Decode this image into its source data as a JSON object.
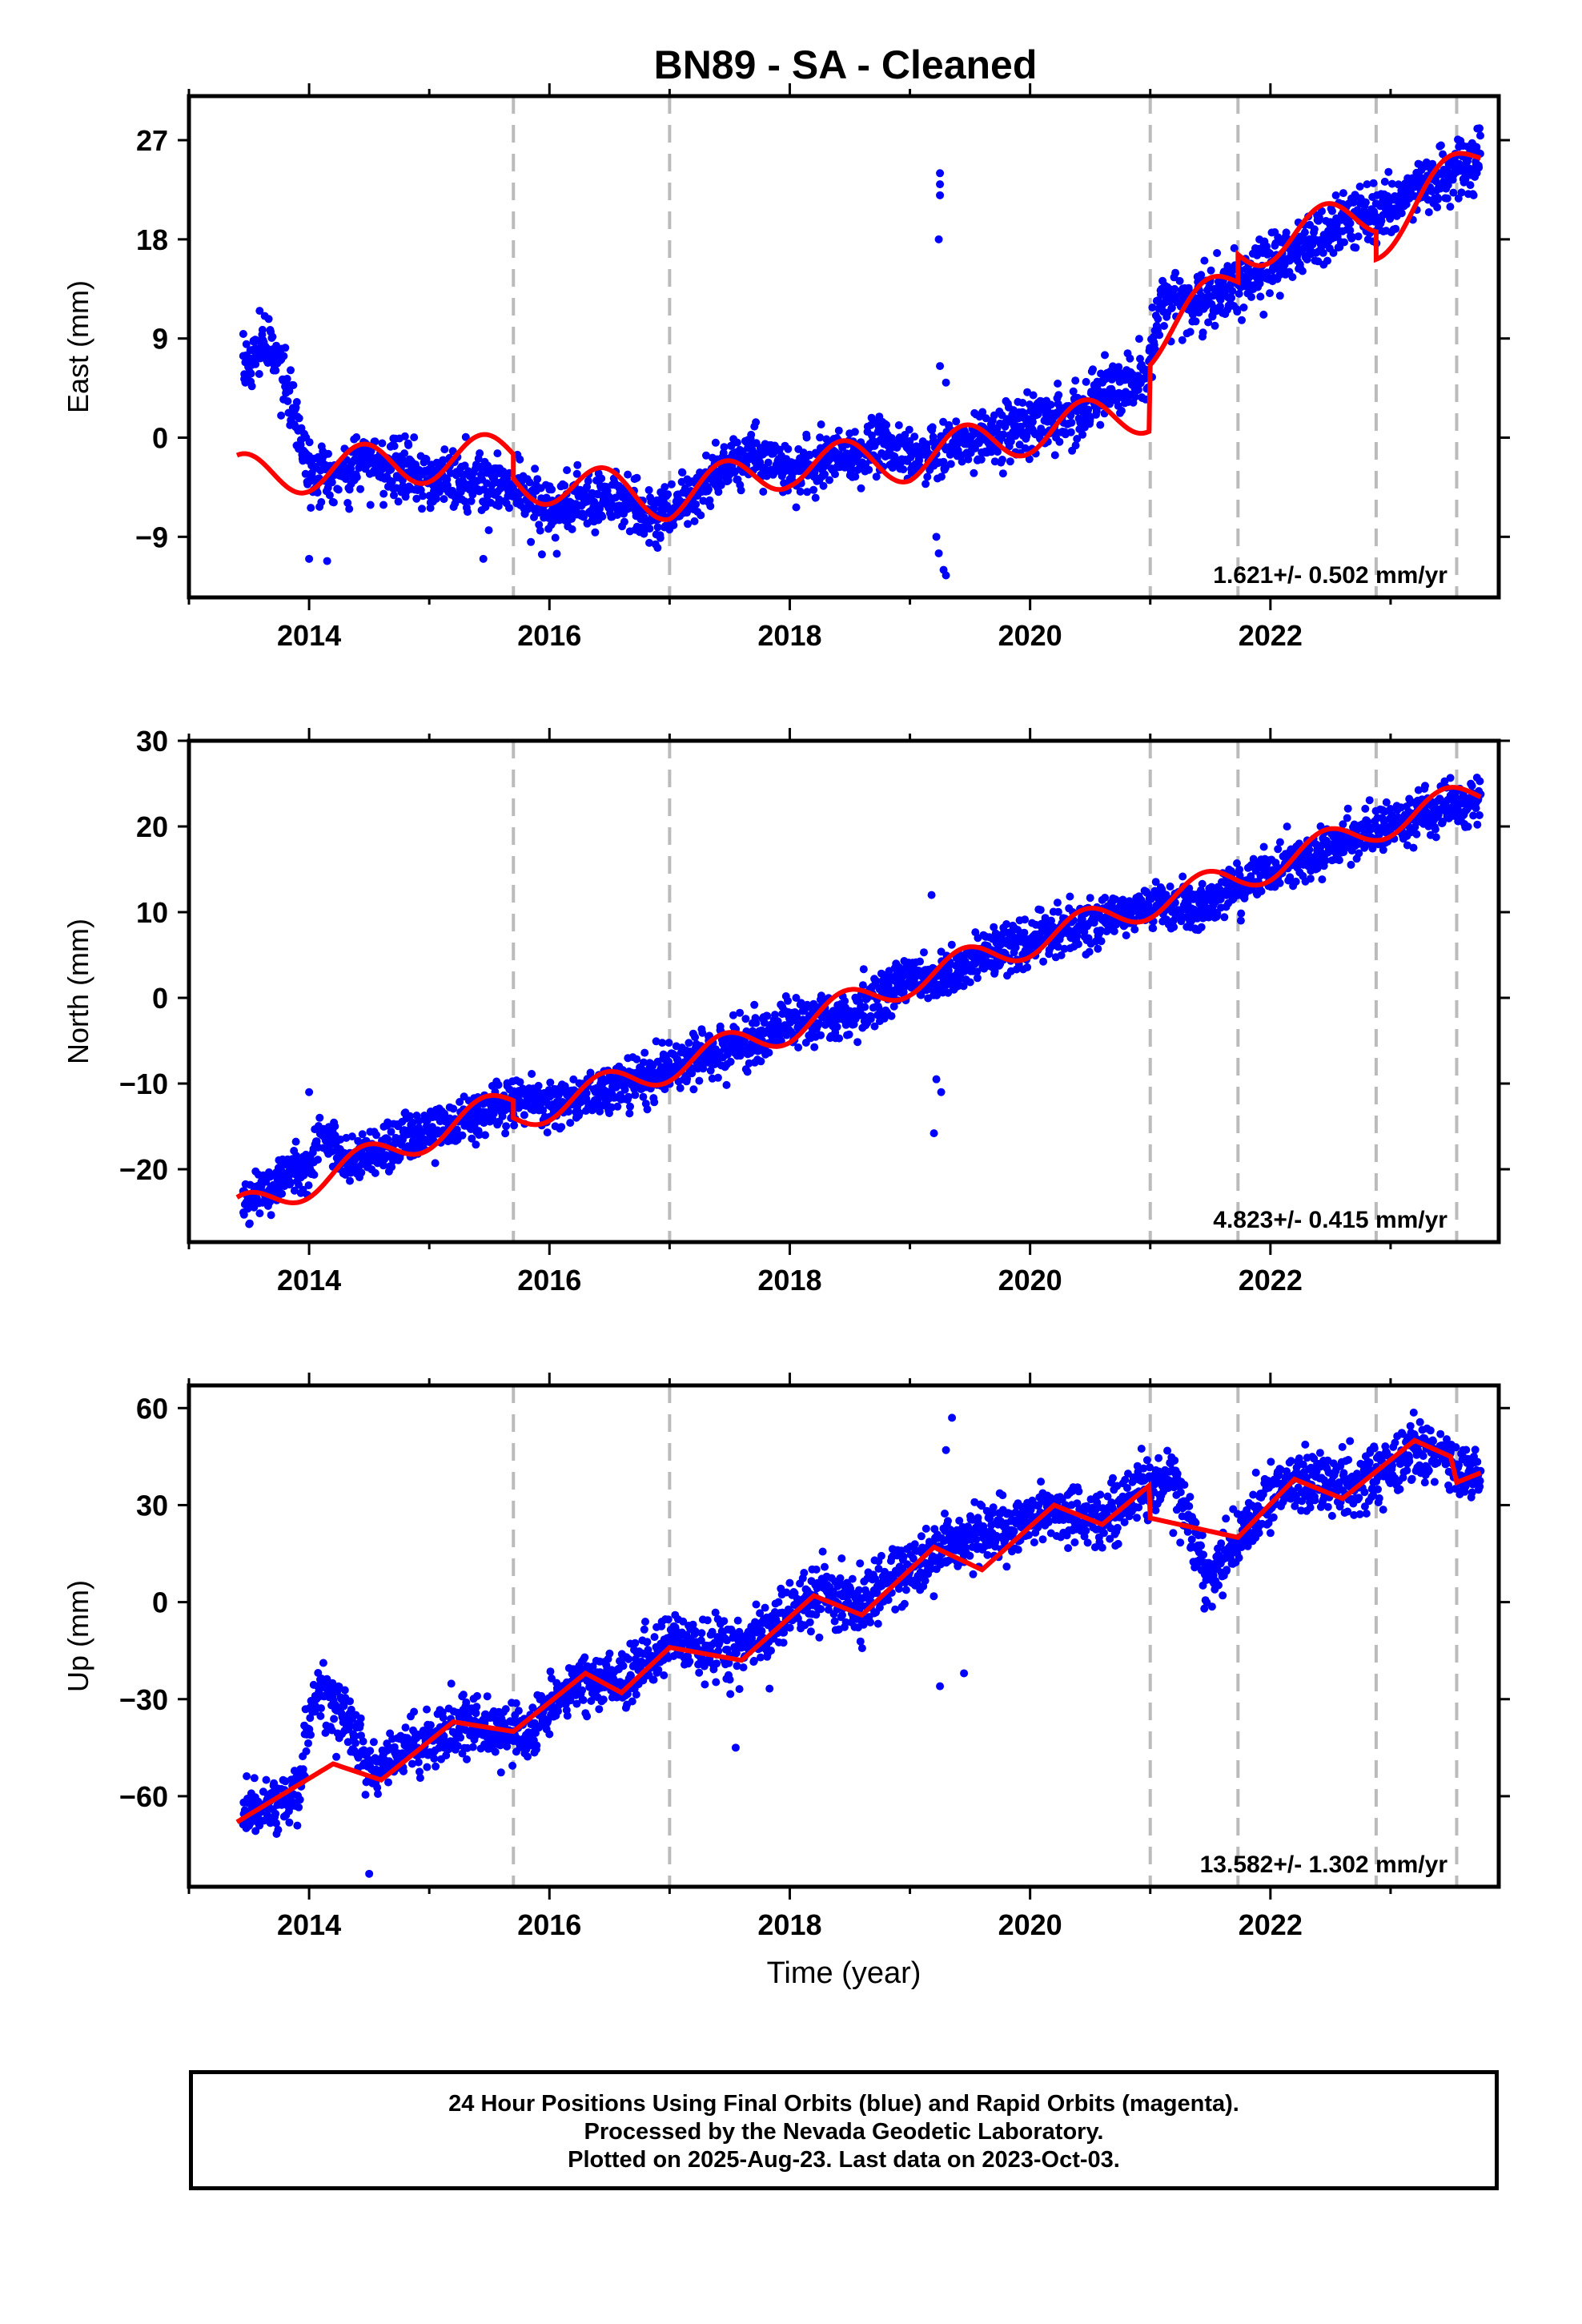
{
  "title": "BN89  - SA - Cleaned",
  "chart_data": [
    {
      "type": "scatter",
      "name": "East",
      "ylabel": "East (mm)",
      "xlabel": "",
      "xlim": [
        2013.0,
        2023.9
      ],
      "ylim": [
        -14.5,
        31
      ],
      "yticks": [
        -9,
        0,
        9,
        18,
        27
      ],
      "xticks": [
        2014,
        2016,
        2018,
        2020,
        2022
      ],
      "breaks": [
        2015.7,
        2017.0,
        2021.0,
        2021.73,
        2022.88,
        2023.55
      ],
      "rate_label": "1.621+/- 0.502 mm/yr",
      "observations_color": "#0000ff",
      "model_color": "#ff0000",
      "trend_points": [
        [
          2013.45,
          6.0
        ],
        [
          2013.6,
          8.5
        ],
        [
          2013.75,
          7.0
        ],
        [
          2013.9,
          1.0
        ],
        [
          2014.05,
          -4.0
        ],
        [
          2014.3,
          -2.5
        ],
        [
          2014.6,
          -2.0
        ],
        [
          2015.0,
          -4.0
        ],
        [
          2015.5,
          -4.0
        ],
        [
          2015.7,
          -4.5
        ],
        [
          2016.0,
          -6.5
        ],
        [
          2016.5,
          -5.5
        ],
        [
          2016.9,
          -7.0
        ],
        [
          2017.3,
          -4.0
        ],
        [
          2017.7,
          -1.5
        ],
        [
          2018.0,
          -3.0
        ],
        [
          2018.5,
          -1.5
        ],
        [
          2018.8,
          -0.5
        ],
        [
          2019.1,
          -2.0
        ],
        [
          2019.5,
          -0.5
        ],
        [
          2019.9,
          1.0
        ],
        [
          2020.3,
          2.0
        ],
        [
          2020.7,
          4.5
        ],
        [
          2020.98,
          6.0
        ],
        [
          2021.1,
          12.5
        ],
        [
          2021.5,
          12.5
        ],
        [
          2021.9,
          15.0
        ],
        [
          2022.3,
          17.5
        ],
        [
          2022.7,
          20.0
        ],
        [
          2023.0,
          21.0
        ],
        [
          2023.4,
          23.5
        ],
        [
          2023.75,
          25.5
        ]
      ],
      "outliers": [
        [
          2019.25,
          24.0
        ],
        [
          2019.25,
          23.0
        ],
        [
          2019.25,
          22.0
        ],
        [
          2019.24,
          18.0
        ],
        [
          2019.22,
          -9.0
        ],
        [
          2019.24,
          -10.5
        ],
        [
          2019.28,
          -12.0
        ],
        [
          2019.3,
          -12.5
        ],
        [
          2014.0,
          -11.0
        ],
        [
          2014.15,
          -11.2
        ],
        [
          2015.45,
          -11.0
        ],
        [
          2016.9,
          -10.0
        ],
        [
          2019.25,
          6.5
        ],
        [
          2019.3,
          5.0
        ]
      ],
      "model": {
        "rate": 1.621,
        "ref_year": 2018.5,
        "anchor": [
          [
            2013.4,
            -3.5
          ],
          [
            2015.7,
            -1.5
          ],
          [
            2015.7,
            -3.7
          ],
          [
            2017.0,
            -5.5
          ],
          [
            2018.0,
            -2.5
          ],
          [
            2019.0,
            -2.0
          ],
          [
            2020.0,
            0.5
          ],
          [
            2020.99,
            2.5
          ],
          [
            2021.0,
            8.5
          ],
          [
            2021.73,
            14.5
          ],
          [
            2021.73,
            17.0
          ],
          [
            2022.88,
            20.5
          ],
          [
            2022.88,
            18.0
          ],
          [
            2023.75,
            26.0
          ]
        ],
        "seasonal": 2.0
      }
    },
    {
      "type": "scatter",
      "name": "North",
      "ylabel": "North (mm)",
      "xlabel": "",
      "xlim": [
        2013.0,
        2023.9
      ],
      "ylim": [
        -28.5,
        30
      ],
      "yticks": [
        -20,
        -10,
        0,
        10,
        20,
        30
      ],
      "xticks": [
        2014,
        2016,
        2018,
        2020,
        2022
      ],
      "breaks": [
        2015.7,
        2017.0,
        2021.0,
        2021.73,
        2022.88,
        2023.55
      ],
      "rate_label": "4.823+/- 0.415 mm/yr",
      "observations_color": "#0000ff",
      "model_color": "#ff0000",
      "trend_points": [
        [
          2013.45,
          -24.0
        ],
        [
          2014.0,
          -20.0
        ],
        [
          2014.1,
          -15.0
        ],
        [
          2014.3,
          -19.5
        ],
        [
          2014.8,
          -17.0
        ],
        [
          2015.5,
          -13.0
        ],
        [
          2015.7,
          -12.0
        ],
        [
          2016.0,
          -12.5
        ],
        [
          2016.5,
          -11.0
        ],
        [
          2017.0,
          -8.0
        ],
        [
          2017.5,
          -6.0
        ],
        [
          2018.0,
          -3.0
        ],
        [
          2018.5,
          -2.0
        ],
        [
          2019.0,
          2.0
        ],
        [
          2019.25,
          2.0
        ],
        [
          2019.6,
          5.0
        ],
        [
          2020.0,
          7.0
        ],
        [
          2020.5,
          8.5
        ],
        [
          2021.0,
          11.0
        ],
        [
          2021.4,
          10.0
        ],
        [
          2021.9,
          14.5
        ],
        [
          2022.3,
          16.5
        ],
        [
          2022.8,
          19.0
        ],
        [
          2023.2,
          21.0
        ],
        [
          2023.75,
          23.0
        ]
      ],
      "outliers": [
        [
          2019.22,
          -9.5
        ],
        [
          2019.26,
          -11.0
        ],
        [
          2019.2,
          -15.8
        ],
        [
          2019.18,
          12.0
        ],
        [
          2014.0,
          -11.0
        ]
      ],
      "model": {
        "rate": 4.823,
        "ref_year": 2018.5,
        "anchor": [
          [
            2013.4,
            -25.0
          ],
          [
            2015.7,
            -12.0
          ],
          [
            2015.7,
            -14.0
          ],
          [
            2017.0,
            -8.0
          ],
          [
            2018.0,
            -3.5
          ],
          [
            2019.0,
            2.0
          ],
          [
            2020.0,
            6.5
          ],
          [
            2021.0,
            11.0
          ],
          [
            2021.73,
            14.0
          ],
          [
            2022.88,
            20.0
          ],
          [
            2023.75,
            24.0
          ]
        ],
        "seasonal": 1.8
      }
    },
    {
      "type": "scatter",
      "name": "Up",
      "ylabel": "Up (mm)",
      "xlabel": "Time (year)",
      "xlim": [
        2013.0,
        2023.9
      ],
      "ylim": [
        -88,
        67
      ],
      "yticks": [
        -60,
        -30,
        0,
        30,
        60
      ],
      "xticks": [
        2014,
        2016,
        2018,
        2020,
        2022
      ],
      "breaks": [
        2015.7,
        2017.0,
        2021.0,
        2021.73,
        2022.88,
        2023.55
      ],
      "rate_label": "13.582+/- 1.302 mm/yr",
      "observations_color": "#0000ff",
      "model_color": "#ff0000",
      "trend_points": [
        [
          2013.45,
          -66.0
        ],
        [
          2013.9,
          -60.0
        ],
        [
          2014.05,
          -27.0
        ],
        [
          2014.3,
          -35.0
        ],
        [
          2014.5,
          -52.0
        ],
        [
          2014.9,
          -45.0
        ],
        [
          2015.3,
          -38.0
        ],
        [
          2015.8,
          -42.0
        ],
        [
          2016.2,
          -25.0
        ],
        [
          2016.6,
          -25.0
        ],
        [
          2017.0,
          -12.0
        ],
        [
          2017.5,
          -15.0
        ],
        [
          2018.0,
          -5.0
        ],
        [
          2018.2,
          2.0
        ],
        [
          2018.6,
          0.0
        ],
        [
          2019.2,
          15.0
        ],
        [
          2019.5,
          20.0
        ],
        [
          2020.2,
          28.0
        ],
        [
          2020.6,
          26.0
        ],
        [
          2021.0,
          36.0
        ],
        [
          2021.2,
          40.0
        ],
        [
          2021.5,
          5.0
        ],
        [
          2021.8,
          25.0
        ],
        [
          2022.2,
          38.0
        ],
        [
          2022.7,
          35.0
        ],
        [
          2023.2,
          48.0
        ],
        [
          2023.75,
          38.0
        ]
      ],
      "outliers": [
        [
          2019.35,
          57.0
        ],
        [
          2019.3,
          47.0
        ],
        [
          2019.25,
          -26.0
        ],
        [
          2019.45,
          -22.0
        ],
        [
          2014.5,
          -84.0
        ],
        [
          2017.55,
          -45.0
        ],
        [
          2021.45,
          -2.0
        ]
      ],
      "model": {
        "rate": 13.582,
        "ref_year": 2018.5,
        "anchor": [
          [
            2013.4,
            -68.0
          ],
          [
            2014.2,
            -50.0
          ],
          [
            2014.6,
            -55.0
          ],
          [
            2015.2,
            -37.0
          ],
          [
            2015.7,
            -40.0
          ],
          [
            2016.3,
            -22.0
          ],
          [
            2016.6,
            -28.0
          ],
          [
            2017.0,
            -14.0
          ],
          [
            2017.6,
            -18.0
          ],
          [
            2018.2,
            2.0
          ],
          [
            2018.6,
            -4.0
          ],
          [
            2019.2,
            17.0
          ],
          [
            2019.6,
            10.0
          ],
          [
            2020.2,
            30.0
          ],
          [
            2020.6,
            24.0
          ],
          [
            2020.99,
            36.0
          ],
          [
            2021.0,
            26.0
          ],
          [
            2021.73,
            20.0
          ],
          [
            2022.2,
            38.0
          ],
          [
            2022.6,
            32.0
          ],
          [
            2023.2,
            50.0
          ],
          [
            2023.5,
            45.0
          ],
          [
            2023.55,
            37.0
          ],
          [
            2023.75,
            40.0
          ]
        ],
        "seasonal": 0.0
      }
    }
  ],
  "footer": {
    "line1": "24 Hour Positions Using Final Orbits (blue) and Rapid Orbits (magenta).",
    "line2": "Processed by the Nevada Geodetic Laboratory.",
    "line3": "Plotted on 2025-Aug-23. Last data on 2023-Oct-03."
  }
}
